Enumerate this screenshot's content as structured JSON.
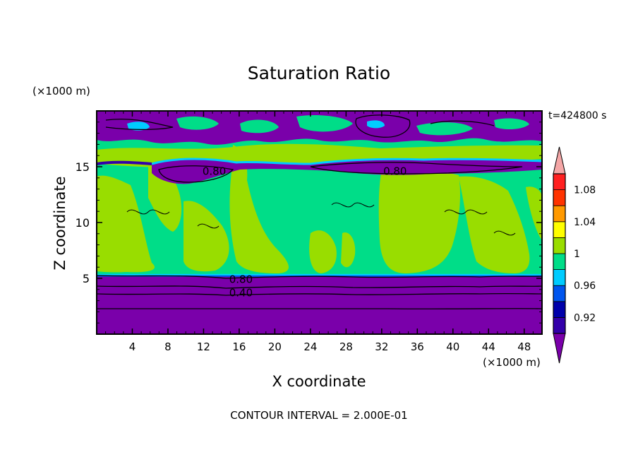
{
  "chart_data": {
    "type": "heatmap",
    "title": "Saturation Ratio",
    "xlabel": "X coordinate",
    "ylabel": "Z coordinate",
    "x_unit": "(×1000 m)",
    "y_unit": "(×1000 m)",
    "time_label": "t=424800 s",
    "footer": "CONTOUR INTERVAL = 2.000E-01",
    "xlim": [
      0,
      50
    ],
    "ylim": [
      0,
      20
    ],
    "x_ticks": [
      4,
      8,
      12,
      16,
      20,
      24,
      28,
      32,
      36,
      40,
      44,
      48
    ],
    "y_ticks": [
      5,
      10,
      15
    ],
    "colorbar": {
      "levels": [
        0.9,
        0.92,
        0.94,
        0.96,
        0.98,
        1,
        1.02,
        1.04,
        1.06,
        1.08,
        1.1
      ],
      "tick_labels": [
        "0.92",
        "0.96",
        "1",
        "1.04",
        "1.08"
      ],
      "tick_values": [
        0.92,
        0.96,
        1,
        1.04,
        1.08
      ],
      "colors": [
        "#7a00aa",
        "#3300aa",
        "#0000aa",
        "#0055ee",
        "#00ccff",
        "#00dd88",
        "#99dd00",
        "#ffff00",
        "#ff9900",
        "#ff3300",
        "#ff2020",
        "#f4a6a6"
      ]
    },
    "contour_labels": [
      {
        "text": "0.80",
        "x": 13.2,
        "z": 14.6
      },
      {
        "text": "0.80",
        "x": 33.5,
        "z": 14.6
      },
      {
        "text": "0.80",
        "x": 16.2,
        "z": 4.9
      },
      {
        "text": "0.40",
        "x": 16.2,
        "z": 3.7
      }
    ],
    "bands": {
      "top_dry_layer": {
        "z": [
          16.8,
          20
        ],
        "dominant_value": 0.9
      },
      "upper_tongue": {
        "z": [
          13.8,
          16.3
        ],
        "dominant_value": 0.9
      },
      "middle_moist": {
        "z": [
          5.4,
          14.5
        ],
        "dominant_value": 1.0
      },
      "lower_dry_layer": {
        "z": [
          0,
          5.2
        ],
        "dominant_value": 0.9
      }
    }
  }
}
